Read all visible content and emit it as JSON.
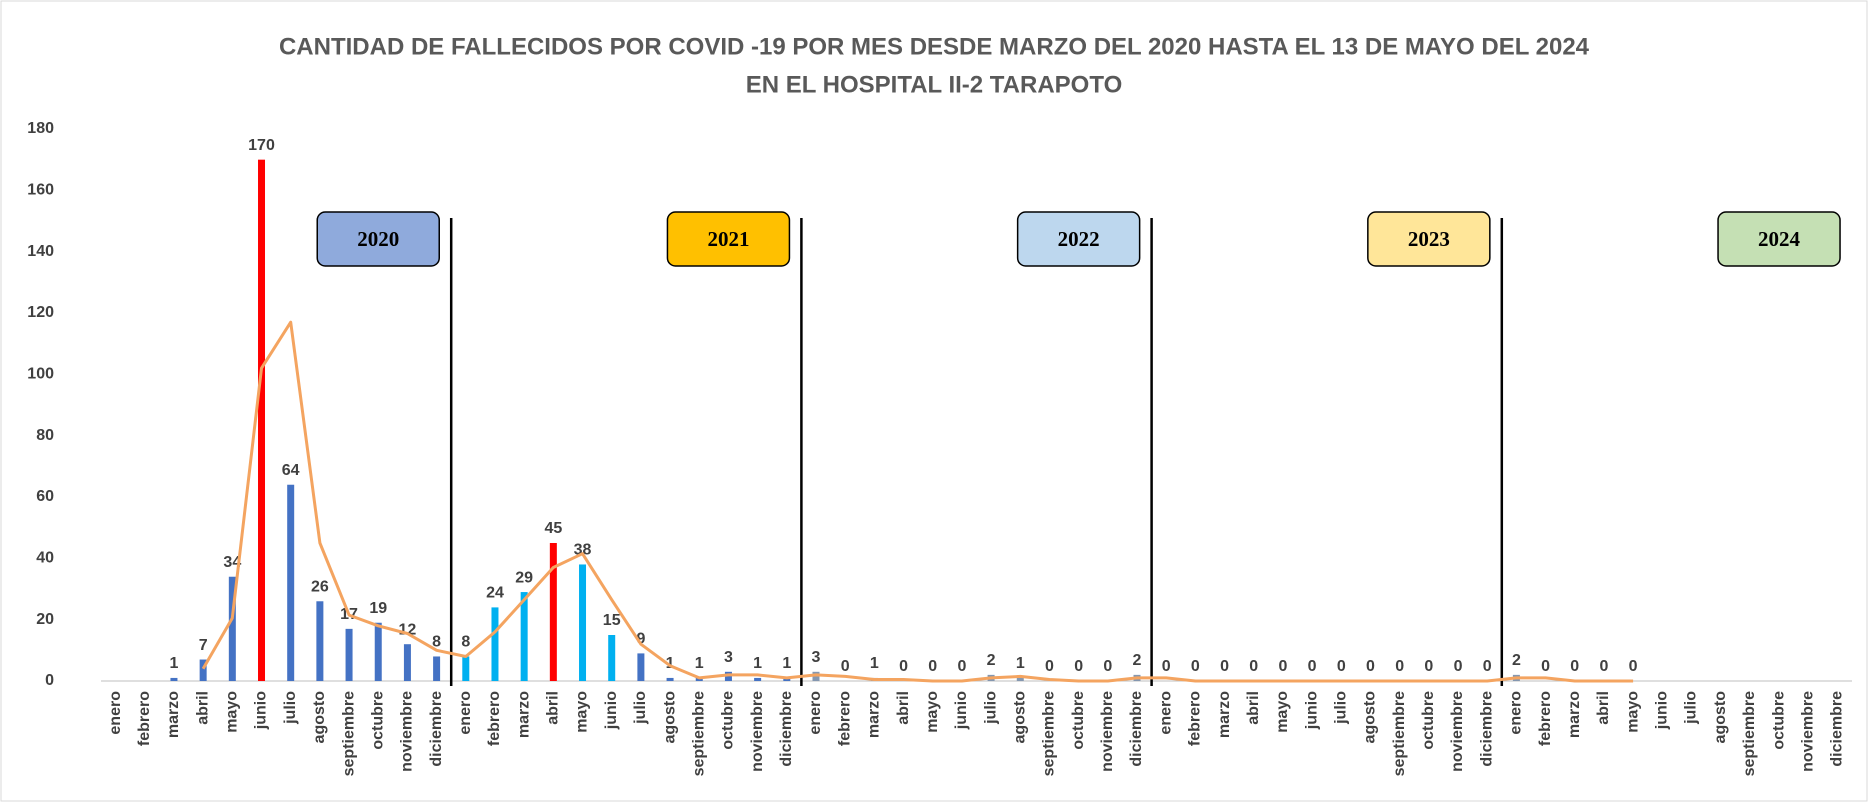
{
  "chart_data": {
    "type": "bar",
    "title": [
      "CANTIDAD DE FALLECIDOS POR COVID -19  POR MES  DESDE MARZO DEL 2020 HASTA EL 13 DE MAYO  DEL 2024",
      "EN EL HOSPITAL II-2 TARAPOTO"
    ],
    "categories": [
      "enero",
      "febrero",
      "marzo",
      "abril",
      "mayo",
      "junio",
      "julio",
      "agosto",
      "septiembre",
      "octubre",
      "noviembre",
      "diciembre",
      "enero",
      "febrero",
      "marzo",
      "abril",
      "mayo",
      "junio",
      "julio",
      "agosto",
      "septiembre",
      "octubre",
      "noviembre",
      "diciembre",
      "enero",
      "febrero",
      "marzo",
      "abril",
      "mayo",
      "junio",
      "julio",
      "agosto",
      "septiembre",
      "octubre",
      "noviembre",
      "diciembre",
      "enero",
      "febrero",
      "marzo",
      "abril",
      "mayo",
      "junio",
      "julio",
      "agosto",
      "septiembre",
      "octubre",
      "noviembre",
      "diciembre",
      "enero",
      "febrero",
      "marzo",
      "abril",
      "mayo",
      "junio",
      "julio",
      "agosto",
      "septiembre",
      "octubre",
      "noviembre",
      "diciembre"
    ],
    "series": [
      {
        "type": "bar",
        "values": [
          null,
          null,
          1,
          7,
          34,
          170,
          64,
          26,
          17,
          19,
          12,
          8,
          8,
          24,
          29,
          45,
          38,
          15,
          9,
          1,
          1,
          3,
          1,
          1,
          3,
          0,
          1,
          0,
          0,
          0,
          2,
          1,
          0,
          0,
          0,
          2,
          0,
          0,
          0,
          0,
          0,
          0,
          0,
          0,
          0,
          0,
          0,
          0,
          2,
          0,
          0,
          0,
          0,
          null,
          null,
          null,
          null,
          null,
          null,
          null
        ],
        "colors": [
          "#4472c4",
          "#4472c4",
          "#4472c4",
          "#4472c4",
          "#4472c4",
          "#ff0000",
          "#4472c4",
          "#4472c4",
          "#4472c4",
          "#4472c4",
          "#4472c4",
          "#4472c4",
          "#00b0f0",
          "#00b0f0",
          "#00b0f0",
          "#ff0000",
          "#00b0f0",
          "#00b0f0",
          "#4472c4",
          "#4472c4",
          "#4472c4",
          "#4472c4",
          "#4472c4",
          "#4472c4",
          "#8497b0",
          "#8497b0",
          "#8497b0",
          "#8497b0",
          "#8497b0",
          "#8497b0",
          "#8497b0",
          "#8497b0",
          "#8497b0",
          "#8497b0",
          "#8497b0",
          "#8497b0",
          "#8497b0",
          "#8497b0",
          "#8497b0",
          "#8497b0",
          "#8497b0",
          "#8497b0",
          "#8497b0",
          "#8497b0",
          "#8497b0",
          "#8497b0",
          "#8497b0",
          "#8497b0",
          "#8497b0",
          "#8497b0",
          "#8497b0",
          "#8497b0",
          "#8497b0",
          "#8497b0",
          "#8497b0",
          "#8497b0",
          "#8497b0",
          "#8497b0",
          "#8497b0",
          "#8497b0"
        ]
      },
      {
        "type": "line",
        "color": "#f4a460",
        "values": [
          null,
          null,
          null,
          4,
          20.5,
          102,
          117,
          45,
          21.5,
          18,
          15.5,
          10,
          8,
          16,
          26.5,
          37,
          41.5,
          26.5,
          12,
          5,
          1,
          2,
          2,
          1,
          2,
          1.5,
          0.5,
          0.5,
          0,
          0,
          1,
          1.5,
          0.5,
          0,
          0,
          1,
          1,
          0,
          0,
          0,
          0,
          0,
          0,
          0,
          0,
          0,
          0,
          0,
          1,
          1,
          0,
          0,
          0,
          null,
          null,
          null,
          null,
          null,
          null,
          null
        ]
      }
    ],
    "annotations": [
      {
        "text": "2020",
        "color": "#8faadc"
      },
      {
        "text": "2021",
        "color": "#ffc000"
      },
      {
        "text": "2022",
        "color": "#bdd7ee"
      },
      {
        "text": "2023",
        "color": "#ffe699"
      },
      {
        "text": "2024",
        "color": "#c5e0b4"
      }
    ],
    "ylim": [
      0,
      180
    ],
    "yticks": [
      0,
      20,
      40,
      60,
      80,
      100,
      120,
      140,
      160,
      180
    ],
    "grid": false
  }
}
